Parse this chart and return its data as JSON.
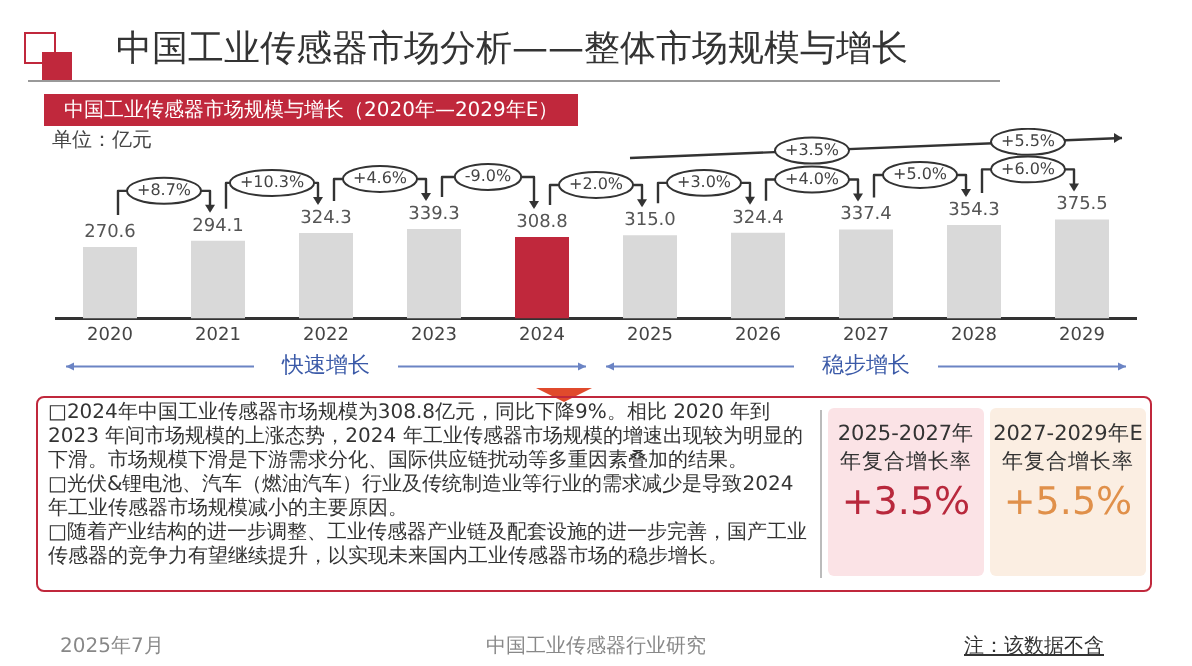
{
  "chart_data": {
    "type": "bar",
    "title": "中国工业传感器市场分析——整体市场规模与增长",
    "subtitle": "中国工业传感器市场规模与增长（2020年—2029年E）",
    "ylabel": "单位：亿元",
    "categories": [
      "2020",
      "2021",
      "2022",
      "2023",
      "2024",
      "2025",
      "2026",
      "2027",
      "2028",
      "2029"
    ],
    "values": [
      270.6,
      294.1,
      324.3,
      339.3,
      308.8,
      315.0,
      324.4,
      337.4,
      354.3,
      375.5
    ],
    "colors": [
      "#d9d9d9",
      "#d9d9d9",
      "#d9d9d9",
      "#d9d9d9",
      "#c0283c",
      "#d9d9d9",
      "#d9d9d9",
      "#d9d9d9",
      "#d9d9d9",
      "#d9d9d9"
    ],
    "value_labels": [
      "270.6",
      "294.1",
      "324.3",
      "339.3",
      "308.8",
      "315.0",
      "324.4",
      "337.4",
      "354.3",
      "375.5"
    ],
    "grid": false,
    "legend": false,
    "annotations": [
      "+8.7%",
      "+10.3%",
      "+4.6%",
      "-9.0%",
      "+2.0%",
      "+3.0%",
      "+4.0%",
      "+5.0%",
      "+6.0%",
      "+3.5%",
      "+5.5%",
      "快速增长",
      "稳步增长",
      "□2024年中国工业传感器市场规模为308.8亿元，同比下降9%。相比 2020 年到 2023 年间市场规模的上涨态势，2024 年工业传感器市场规模的增速出现较为明显的下滑。市场规模下滑是下游需求分化、国际供应链扰动等多重因素叠加的结果。",
      "□光伏&锂电池、汽车（燃油汽车）行业及传统制造业等行业的需求减少是导致2024年工业传感器市场规模减小的主要原因。",
      "□随着产业结构的进一步调整、工业传感器产业链及配套设施的进一步完善，国产工业传感器的竞争力有望继续提升，以实现未来国内工业传感器市场的稳步增长。",
      "2025-2027年",
      "年复合增长率",
      "+3.5%",
      "2027-2029年E",
      "年复合增长率",
      "+5.5%",
      "2025年7月",
      "中国工业传感器行业研究",
      "注：该数据不含"
    ]
  }
}
